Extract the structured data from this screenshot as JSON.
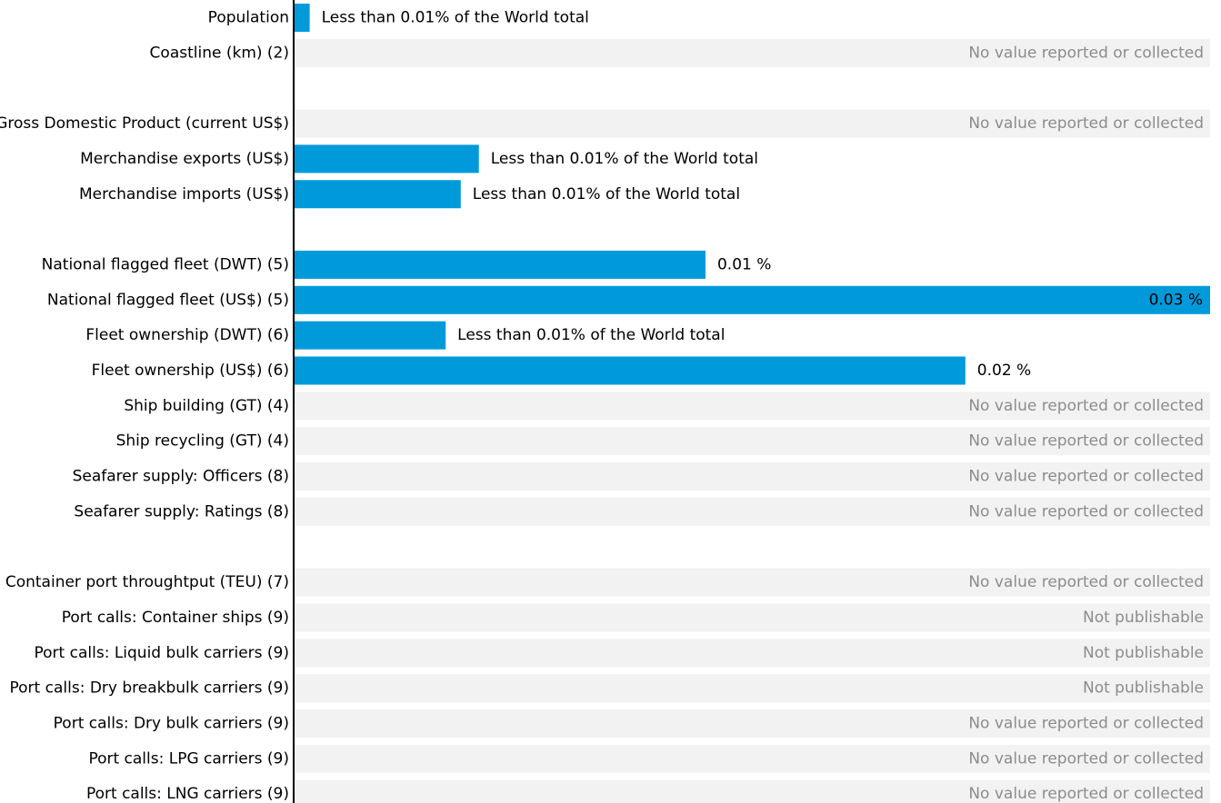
{
  "colors": {
    "bar": "#009ADA",
    "row_background": "#F2F2F2",
    "axis": "#000000",
    "muted_text": "#8C8C8C"
  },
  "chart_data": {
    "type": "bar",
    "orientation": "horizontal",
    "xlim": [
      0,
      0.0303
    ],
    "grid": false,
    "legend": "none",
    "rows": [
      {
        "category": "Population",
        "value": 0.0005,
        "label": "Less than 0.01% of the World total",
        "background": false
      },
      {
        "category": "Coastline (km) (2)",
        "value": null,
        "label": "No value reported or collected",
        "background": true
      },
      {
        "category": "",
        "value": null,
        "label": "",
        "background": false
      },
      {
        "category": "Gross Domestic Product (current US$)",
        "value": null,
        "label": "No value reported or collected",
        "background": true
      },
      {
        "category": "Merchandise exports (US$)",
        "value": 0.0061,
        "label": "Less than 0.01% of the World total",
        "background": false
      },
      {
        "category": "Merchandise imports (US$)",
        "value": 0.0055,
        "label": "Less than 0.01% of the World total",
        "background": false
      },
      {
        "category": "",
        "value": null,
        "label": "",
        "background": false
      },
      {
        "category": "National flagged fleet (DWT) (5)",
        "value": 0.0136,
        "label": "0.01 %",
        "background": false
      },
      {
        "category": "National flagged fleet (US$) (5)",
        "value": 0.0303,
        "label": "0.03 %",
        "background": false
      },
      {
        "category": "Fleet ownership (DWT) (6)",
        "value": 0.005,
        "label": "Less than 0.01% of the World total",
        "background": false
      },
      {
        "category": "Fleet ownership (US$) (6)",
        "value": 0.0222,
        "label": "0.02 %",
        "background": false
      },
      {
        "category": "Ship building (GT) (4)",
        "value": null,
        "label": "No value reported or collected",
        "background": true
      },
      {
        "category": "Ship recycling (GT) (4)",
        "value": null,
        "label": "No value reported or collected",
        "background": true
      },
      {
        "category": "Seafarer supply: Officers (8)",
        "value": null,
        "label": "No value reported or collected",
        "background": true
      },
      {
        "category": "Seafarer supply: Ratings (8)",
        "value": null,
        "label": "No value reported or collected",
        "background": true
      },
      {
        "category": "",
        "value": null,
        "label": "",
        "background": false
      },
      {
        "category": "Container port throughtput (TEU) (7)",
        "value": null,
        "label": "No value reported or collected",
        "background": true
      },
      {
        "category": "Port calls: Container ships (9)",
        "value": null,
        "label": "Not publishable",
        "background": true
      },
      {
        "category": "Port calls: Liquid bulk carriers (9)",
        "value": null,
        "label": "Not publishable",
        "background": true
      },
      {
        "category": "Port calls: Dry breakbulk carriers (9)",
        "value": null,
        "label": "Not publishable",
        "background": true
      },
      {
        "category": "Port calls: Dry bulk carriers (9)",
        "value": null,
        "label": "No value reported or collected",
        "background": true
      },
      {
        "category": "Port calls: LPG carriers (9)",
        "value": null,
        "label": "No value reported or collected",
        "background": true
      },
      {
        "category": "Port calls: LNG carriers (9)",
        "value": null,
        "label": "No value reported or collected",
        "background": true
      }
    ]
  }
}
